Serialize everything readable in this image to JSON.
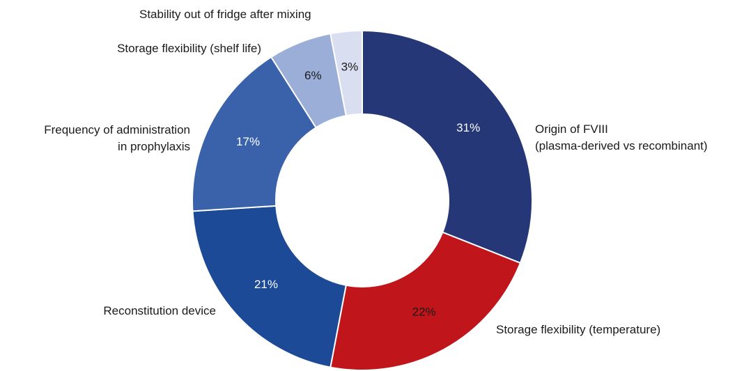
{
  "chart_data": {
    "type": "donut",
    "categories": [
      "Origin of FVIII\n(plasma-derived vs recombinant)",
      "Storage flexibility (temperature)",
      "Reconstitution device",
      "Frequency of administration\nin prophylaxis",
      "Storage flexibility (shelf life)",
      "Stability out of fridge after mixing"
    ],
    "values": [
      31,
      22,
      21,
      17,
      6,
      3
    ],
    "value_labels": [
      "31%",
      "22%",
      "21%",
      "17%",
      "6%",
      "3%"
    ],
    "colors": [
      "#253776",
      "#c0161b",
      "#1c4a97",
      "#3a62ab",
      "#9aaed8",
      "#d9def0"
    ]
  }
}
